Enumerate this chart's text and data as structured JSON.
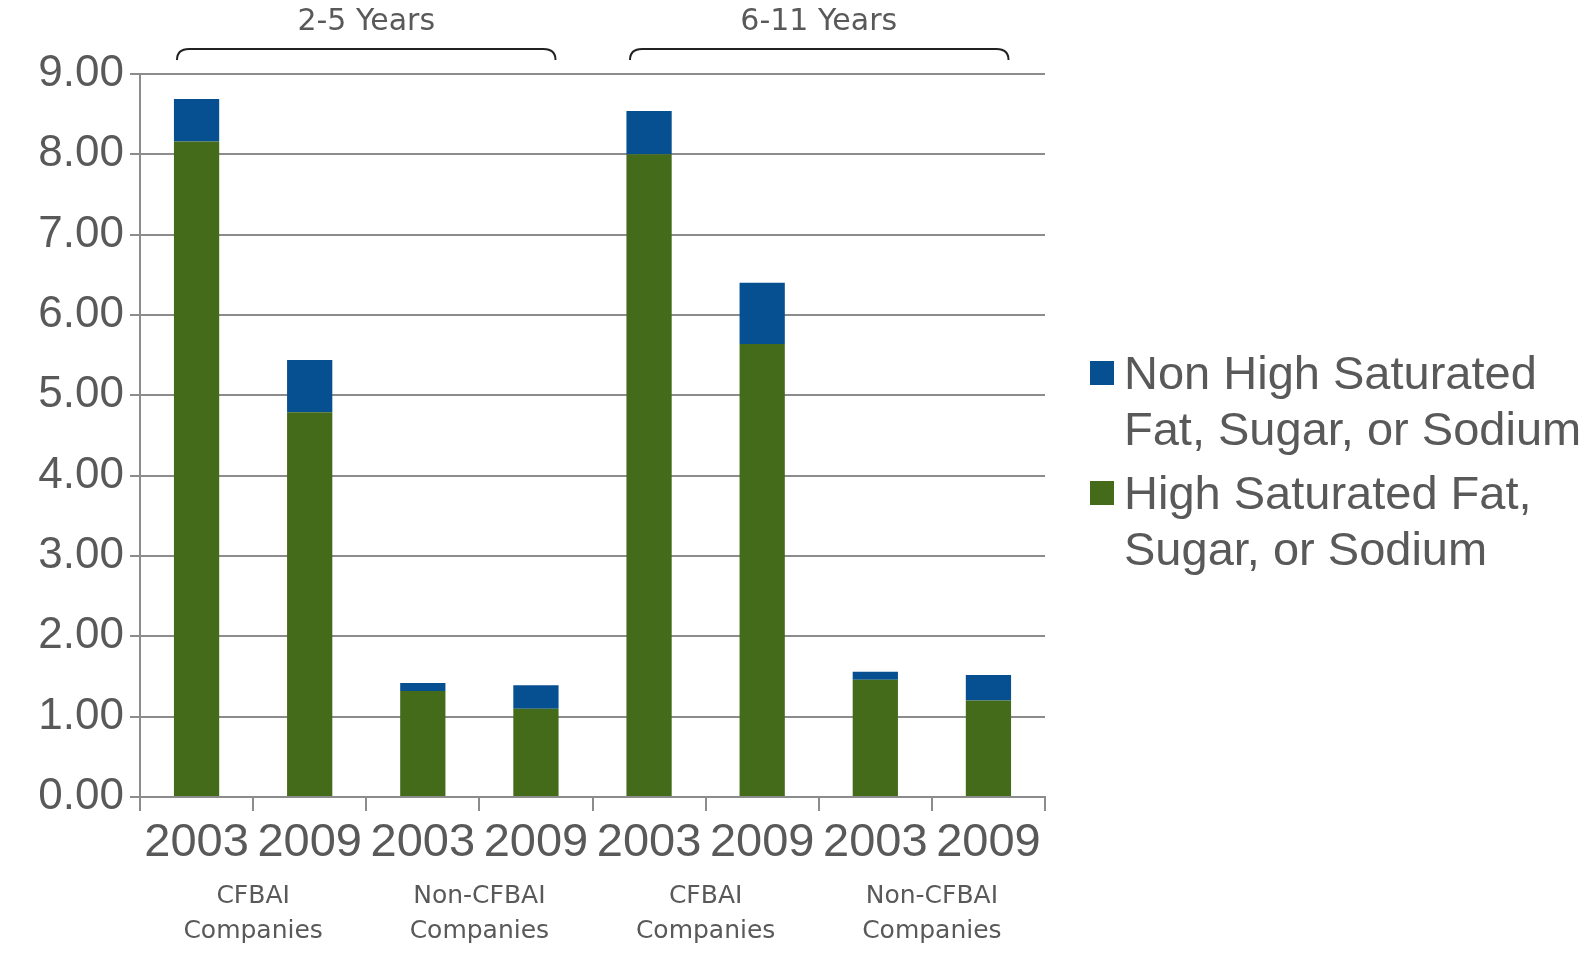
{
  "chart_data": {
    "type": "bar",
    "stacked": true,
    "categories": [
      "2003",
      "2009",
      "2003",
      "2009",
      "2003",
      "2009",
      "2003",
      "2009"
    ],
    "series": [
      {
        "name": "High Saturated Fat, Sugar, or Sodium",
        "color": "#436b1a",
        "values": [
          8.16,
          4.79,
          1.32,
          1.1,
          8.0,
          5.64,
          1.46,
          1.2
        ]
      },
      {
        "name": "Non High Saturated Fat, Sugar, or Sodium",
        "color": "#064f91",
        "values": [
          0.53,
          0.65,
          0.1,
          0.29,
          0.54,
          0.76,
          0.1,
          0.32
        ]
      }
    ],
    "ylim": [
      0,
      9
    ],
    "yticks": [
      {
        "value": 0,
        "label": "0.00"
      },
      {
        "value": 1,
        "label": "1.00"
      },
      {
        "value": 2,
        "label": "2.00"
      },
      {
        "value": 3,
        "label": "3.00"
      },
      {
        "value": 4,
        "label": "4.00"
      },
      {
        "value": 5,
        "label": "5.00"
      },
      {
        "value": 6,
        "label": "6.00"
      },
      {
        "value": 7,
        "label": "7.00"
      },
      {
        "value": 8,
        "label": "8.00"
      },
      {
        "value": 9,
        "label": "9.00"
      }
    ],
    "grid": "y",
    "legend": "right",
    "annotations": [
      "2-5 Years",
      "6-11 Years",
      "CFBAI Companies",
      "Non-CFBAI Companies",
      "CFBAI Companies",
      "Non-CFBAI Companies"
    ]
  }
}
